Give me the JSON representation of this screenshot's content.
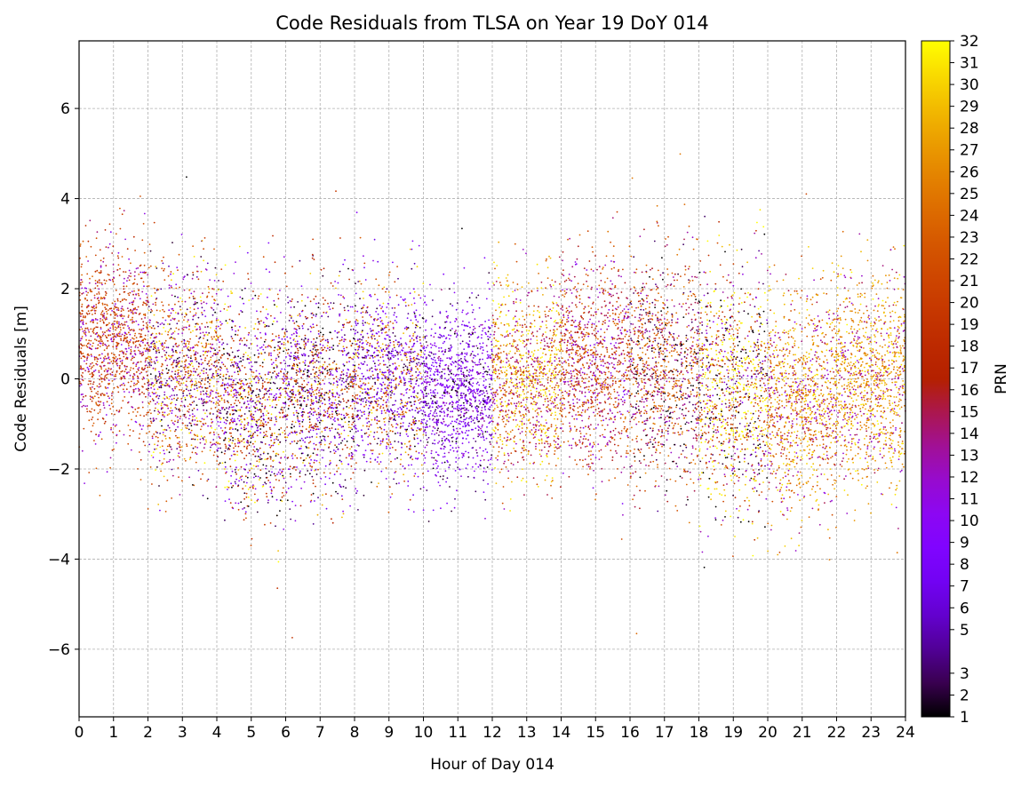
{
  "chart_data": {
    "type": "scatter",
    "title": "Code Residuals from TLSA on Year 19 DoY 014",
    "xlabel": "Hour of Day 014",
    "ylabel": "Code Residuals [m]",
    "xlim": [
      0,
      24
    ],
    "ylim": [
      -7.5,
      7.5
    ],
    "x_ticks": [
      0,
      1,
      2,
      3,
      4,
      5,
      6,
      7,
      8,
      9,
      10,
      11,
      12,
      13,
      14,
      15,
      16,
      17,
      18,
      19,
      20,
      21,
      22,
      23,
      24
    ],
    "y_ticks": [
      -6,
      -4,
      -2,
      0,
      2,
      4,
      6
    ],
    "y_tick_labels": [
      "−6",
      "−4",
      "−2",
      "0",
      "2",
      "4",
      "6"
    ],
    "grid": true,
    "colorbar": {
      "label": "PRN",
      "colormap": "gnuplot",
      "range": [
        1,
        32
      ],
      "ticks": [
        1,
        2,
        3,
        5,
        6,
        7,
        8,
        9,
        10,
        11,
        12,
        13,
        14,
        15,
        16,
        17,
        18,
        19,
        20,
        21,
        22,
        23,
        24,
        25,
        26,
        27,
        28,
        29,
        30,
        31,
        32
      ]
    },
    "point_clouds": [
      {
        "hours": [
          0,
          2
        ],
        "center": 0.8,
        "spread": 1.2,
        "prn_mix": [
          [
            22,
            0.5
          ],
          [
            18,
            0.25
          ],
          [
            12,
            0.25
          ]
        ]
      },
      {
        "hours": [
          2,
          4
        ],
        "center": 0.2,
        "spread": 1.3,
        "prn_mix": [
          [
            22,
            0.35
          ],
          [
            12,
            0.3
          ],
          [
            3,
            0.2
          ],
          [
            30,
            0.15
          ]
        ]
      },
      {
        "hours": [
          4,
          6
        ],
        "center": -0.5,
        "spread": 1.4,
        "prn_mix": [
          [
            20,
            0.35
          ],
          [
            10,
            0.25
          ],
          [
            2,
            0.25
          ],
          [
            31,
            0.15
          ]
        ]
      },
      {
        "hours": [
          6,
          8
        ],
        "center": -0.3,
        "spread": 1.3,
        "prn_mix": [
          [
            19,
            0.35
          ],
          [
            9,
            0.3
          ],
          [
            2,
            0.25
          ],
          [
            29,
            0.1
          ]
        ]
      },
      {
        "hours": [
          8,
          10
        ],
        "center": 0.0,
        "spread": 1.2,
        "prn_mix": [
          [
            9,
            0.45
          ],
          [
            22,
            0.25
          ],
          [
            3,
            0.2
          ],
          [
            29,
            0.1
          ]
        ]
      },
      {
        "hours": [
          10,
          12
        ],
        "center": -0.3,
        "spread": 1.1,
        "prn_mix": [
          [
            9,
            0.65
          ],
          [
            3,
            0.2
          ],
          [
            12,
            0.15
          ]
        ]
      },
      {
        "hours": [
          12,
          14
        ],
        "center": 0.0,
        "spread": 1.2,
        "prn_mix": [
          [
            30,
            0.35
          ],
          [
            14,
            0.35
          ],
          [
            23,
            0.3
          ]
        ]
      },
      {
        "hours": [
          14,
          16
        ],
        "center": 0.3,
        "spread": 1.3,
        "prn_mix": [
          [
            23,
            0.45
          ],
          [
            15,
            0.35
          ],
          [
            11,
            0.2
          ]
        ]
      },
      {
        "hours": [
          16,
          18
        ],
        "center": 0.2,
        "spread": 1.4,
        "prn_mix": [
          [
            24,
            0.45
          ],
          [
            14,
            0.35
          ],
          [
            2,
            0.2
          ]
        ]
      },
      {
        "hours": [
          18,
          20
        ],
        "center": -0.3,
        "spread": 1.5,
        "prn_mix": [
          [
            31,
            0.35
          ],
          [
            20,
            0.3
          ],
          [
            2,
            0.2
          ],
          [
            12,
            0.15
          ]
        ]
      },
      {
        "hours": [
          20,
          22
        ],
        "center": -0.5,
        "spread": 1.4,
        "prn_mix": [
          [
            29,
            0.4
          ],
          [
            23,
            0.35
          ],
          [
            13,
            0.25
          ]
        ]
      },
      {
        "hours": [
          22,
          24
        ],
        "center": 0.0,
        "spread": 1.3,
        "prn_mix": [
          [
            26,
            0.5
          ],
          [
            30,
            0.25
          ],
          [
            13,
            0.25
          ]
        ]
      }
    ]
  }
}
